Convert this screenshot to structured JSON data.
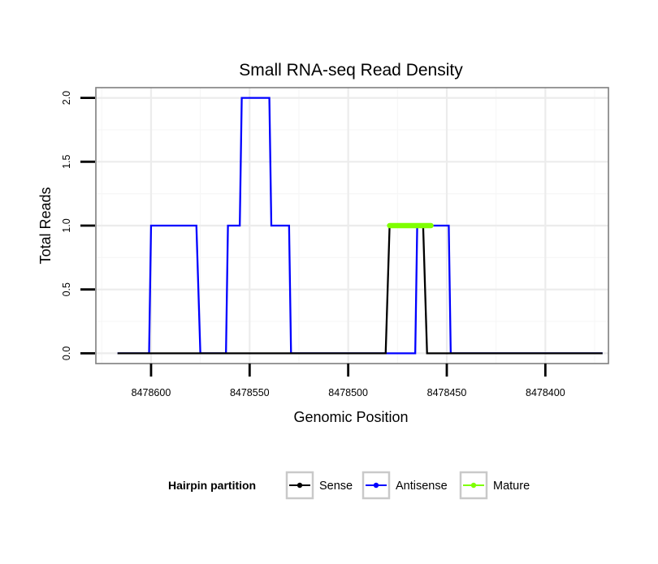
{
  "chart_data": {
    "type": "line",
    "title": "Small RNA-seq Read Density",
    "xlabel": "Genomic Position",
    "ylabel": "Total Reads",
    "x_reversed": true,
    "xlim": [
      8478628,
      8478368
    ],
    "ylim": [
      -0.08,
      2.08
    ],
    "x_ticks": [
      8478600,
      8478550,
      8478500,
      8478450,
      8478400
    ],
    "x_tick_labels": [
      "8478600",
      "8478550",
      "8478500",
      "8478450",
      "8478400"
    ],
    "y_ticks": [
      0.0,
      0.5,
      1.0,
      1.5,
      2.0
    ],
    "y_tick_labels": [
      "0.0",
      "0.5",
      "1.0",
      "1.5",
      "2.0"
    ],
    "grid": true,
    "legend": {
      "title": "Hairpin partition",
      "position": "bottom"
    },
    "series": [
      {
        "name": "Sense",
        "color": "#000000",
        "x": [
          8478617,
          8478481,
          8478479,
          8478462,
          8478460,
          8478371
        ],
        "y": [
          0,
          0,
          1,
          1,
          0,
          0
        ]
      },
      {
        "name": "Antisense",
        "color": "#0000ff",
        "x": [
          8478617,
          8478601,
          8478600,
          8478577,
          8478575,
          8478562,
          8478561,
          8478555,
          8478554,
          8478540,
          8478539,
          8478530,
          8478529,
          8478466,
          8478465,
          8478462,
          8478461,
          8478449,
          8478448,
          8478371
        ],
        "y": [
          0,
          0,
          1,
          1,
          0,
          0,
          1,
          1,
          2,
          2,
          1,
          1,
          0,
          0,
          1,
          1,
          1,
          1,
          0,
          0
        ]
      },
      {
        "name": "Mature",
        "color": "#7fff00",
        "x": [
          8478479,
          8478458
        ],
        "y": [
          1,
          1
        ]
      }
    ]
  }
}
